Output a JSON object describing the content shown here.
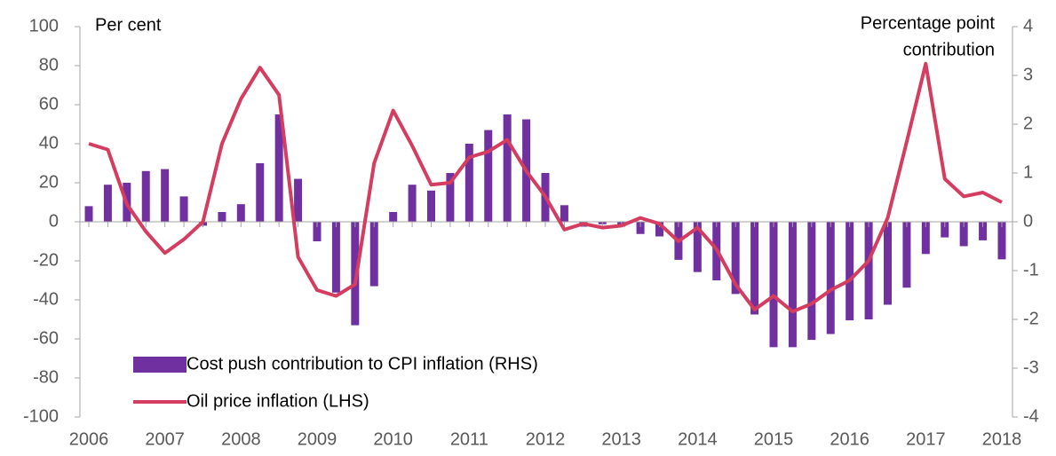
{
  "chart_data": {
    "type": "bar-line",
    "annotations": {
      "left_unit": "Per cent",
      "right_unit_1": "Percentage point",
      "right_unit_2": "contribution"
    },
    "categories": [
      "2006",
      null,
      null,
      null,
      "2007",
      null,
      null,
      null,
      "2008",
      null,
      null,
      null,
      "2009",
      null,
      null,
      null,
      "2010",
      null,
      null,
      null,
      "2011",
      null,
      null,
      null,
      "2012",
      null,
      null,
      null,
      "2013",
      null,
      null,
      null,
      "2014",
      null,
      null,
      null,
      "2015",
      null,
      null,
      null,
      "2016",
      null,
      null,
      null,
      "2017",
      null,
      null,
      null,
      "2018"
    ],
    "series": [
      {
        "name": "Cost push contribution to CPI inflation (RHS)",
        "color": "#7030a0",
        "kind": "bar",
        "axis": "y2",
        "values": [
          0.32,
          0.76,
          0.8,
          1.04,
          1.08,
          0.52,
          -0.08,
          0.2,
          0.36,
          1.2,
          2.2,
          0.88,
          -0.4,
          -1.45,
          -2.12,
          -1.32,
          0.2,
          0.76,
          0.64,
          1.0,
          1.6,
          1.88,
          2.2,
          2.1,
          1.0,
          0.34,
          -0.1,
          -0.05,
          -0.1,
          -0.25,
          -0.3,
          -0.78,
          -1.03,
          -1.2,
          -1.48,
          -1.9,
          -2.57,
          -2.57,
          -2.42,
          -2.3,
          -2.02,
          -2.0,
          -1.7,
          -1.35,
          -0.66,
          -0.32,
          -0.5,
          -0.38,
          -0.77
        ]
      },
      {
        "name": "Oil price inflation (LHS)",
        "color": "#d43d5f",
        "kind": "line",
        "axis": "y",
        "values": [
          40,
          37,
          9,
          -5,
          -16,
          -9,
          0,
          40,
          63,
          79,
          65,
          -18,
          -35,
          -38,
          -32,
          30,
          57,
          39,
          19,
          20,
          33,
          36,
          42,
          26,
          13,
          -4,
          -1,
          -3,
          -2,
          2,
          -1,
          -10,
          -3,
          -14,
          -32,
          -45,
          -38,
          -46,
          -42,
          -35,
          -30,
          -20,
          2,
          41,
          81,
          22,
          13,
          15,
          10
        ]
      }
    ],
    "ylim": [
      -100,
      100
    ],
    "yticks": [
      -100,
      -80,
      -60,
      -40,
      -20,
      0,
      20,
      40,
      60,
      80,
      100
    ],
    "y2lim": [
      -4,
      4
    ],
    "y2ticks": [
      -4,
      -3,
      -2,
      -1,
      0,
      1,
      2,
      3,
      4
    ]
  }
}
